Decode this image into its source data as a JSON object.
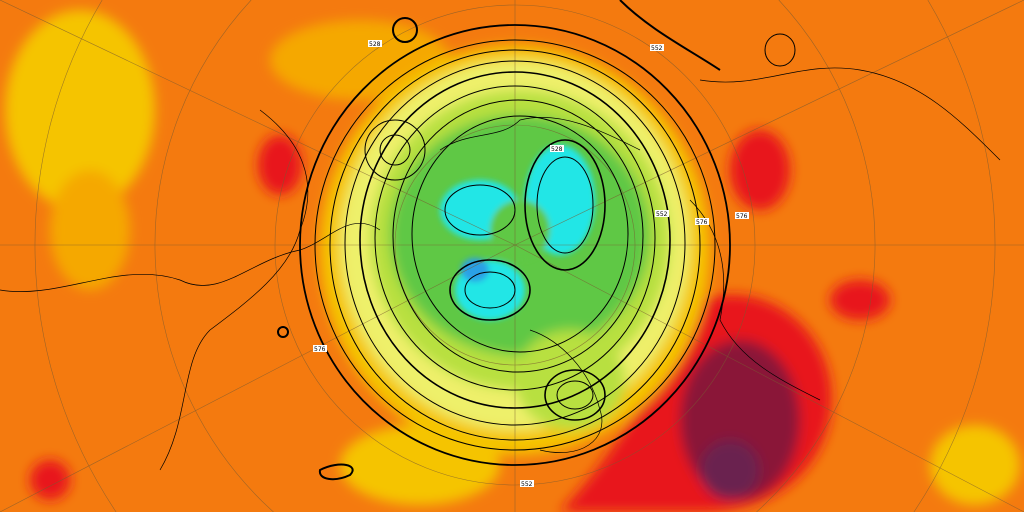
{
  "map": {
    "projection": "polar-stereographic",
    "colors": {
      "background_orange": "#f47a0f",
      "yellow": "#f5c400",
      "light_yellow": "#eef06a",
      "green": "#5ec845",
      "cyan": "#22e6e6",
      "blue": "#2aa0e6",
      "red": "#e8141a",
      "dark_red": "#8a1838",
      "purple": "#6a2050",
      "contour": "#000000",
      "coastline": "#000000",
      "graticule": "#7a5a30"
    },
    "contour_labels": [
      "528",
      "552",
      "576",
      "528",
      "552",
      "576",
      "552",
      "576"
    ]
  }
}
